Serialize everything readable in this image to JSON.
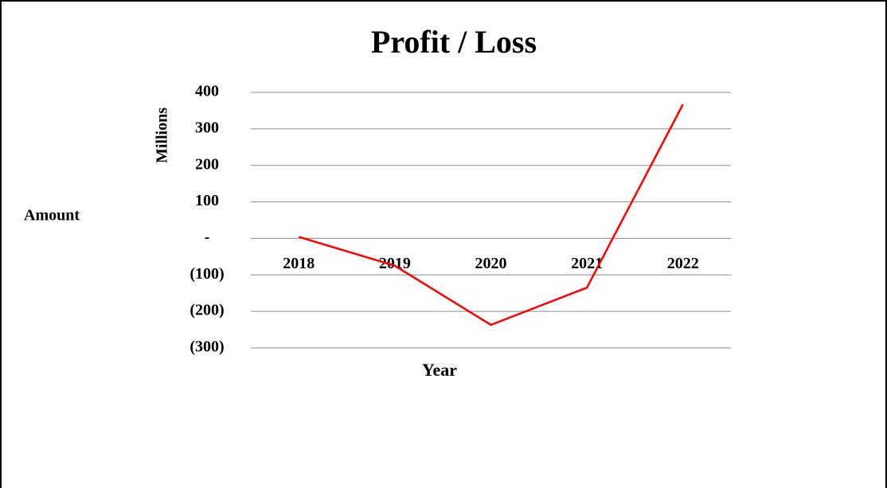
{
  "chart_data": {
    "type": "line",
    "title": "Profit / Loss",
    "y_axis_label": "Amount",
    "y_axis_units": "Millions",
    "x_axis_label": "Year",
    "categories": [
      "2018",
      "2019",
      "2020",
      "2021",
      "2022"
    ],
    "series": [
      {
        "name": "Profit / Loss",
        "color": "#ff0000",
        "values": [
          4,
          -75,
          -237,
          -135,
          367
        ]
      }
    ],
    "ylim": [
      -300,
      400
    ],
    "yticks": [
      {
        "value": -300,
        "label": "(300)"
      },
      {
        "value": -200,
        "label": "(200)"
      },
      {
        "value": -100,
        "label": "(100)"
      },
      {
        "value": 0,
        "label": "-"
      },
      100,
      200,
      300,
      400
    ],
    "grid": true
  }
}
